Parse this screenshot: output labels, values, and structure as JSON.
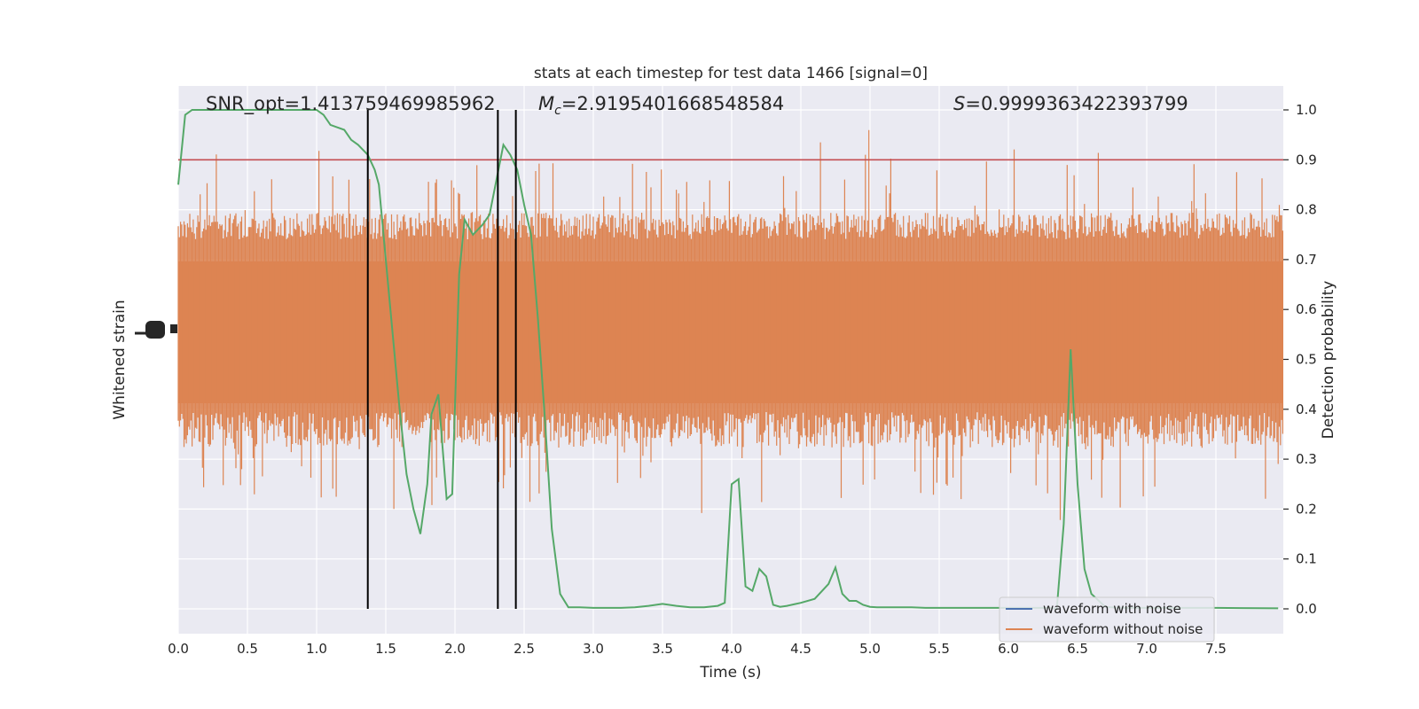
{
  "chart_data": {
    "type": "line",
    "title": "stats at each timestep for test data 1466 [signal=0]",
    "xlabel": "Time (s)",
    "ylabel_left": "Whitened strain",
    "ylabel_right": "Detection probability",
    "xlim": [
      0,
      8.0
    ],
    "ylim_right": [
      -0.05,
      1.05
    ],
    "x_ticks": [
      0.0,
      0.5,
      1.0,
      1.5,
      2.0,
      2.5,
      3.0,
      3.5,
      4.0,
      4.5,
      5.0,
      5.5,
      6.0,
      6.5,
      7.0,
      7.5
    ],
    "x_tick_labels": [
      "0.0",
      "0.5",
      "1.0",
      "1.5",
      "2.0",
      "2.5",
      "3.0",
      "3.5",
      "4.0",
      "4.5",
      "5.0",
      "5.5",
      "6.0",
      "6.5",
      "7.0",
      "7.5"
    ],
    "y_ticks_right": [
      0.0,
      0.1,
      0.2,
      0.3,
      0.4,
      0.5,
      0.6,
      0.7,
      0.8,
      0.9,
      1.0
    ],
    "y_tick_labels_right": [
      "0.0",
      "0.1",
      "0.2",
      "0.3",
      "0.4",
      "0.5",
      "0.6",
      "0.7",
      "0.8",
      "0.9",
      "1.0"
    ],
    "threshold": 0.9,
    "vertical_lines": [
      1.37,
      2.31,
      2.44
    ],
    "annotations": {
      "snr": "SNR_opt=1.413759469985962",
      "mc_symbol": "M",
      "mc_sub": "c",
      "mc_value": "=2.9195401668548584",
      "s_symbol": "S",
      "s_value": "=0.9999363422393799"
    },
    "legend": [
      {
        "label": "waveform with noise",
        "color": "#4c72b0"
      },
      {
        "label": "waveform without noise",
        "color": "#dd8452"
      }
    ],
    "series": [
      {
        "name": "detection probability",
        "color": "#55a868",
        "x": [
          0.0,
          0.05,
          0.1,
          0.2,
          0.3,
          0.4,
          0.5,
          0.6,
          0.7,
          0.8,
          0.9,
          1.0,
          1.05,
          1.1,
          1.2,
          1.25,
          1.3,
          1.37,
          1.42,
          1.45,
          1.5,
          1.55,
          1.6,
          1.65,
          1.7,
          1.75,
          1.8,
          1.83,
          1.88,
          1.94,
          1.98,
          2.03,
          2.07,
          2.13,
          2.2,
          2.25,
          2.3,
          2.35,
          2.4,
          2.45,
          2.5,
          2.55,
          2.6,
          2.65,
          2.7,
          2.76,
          2.82,
          2.9,
          3.0,
          3.1,
          3.2,
          3.3,
          3.4,
          3.5,
          3.6,
          3.7,
          3.8,
          3.9,
          3.95,
          4.0,
          4.05,
          4.1,
          4.15,
          4.2,
          4.25,
          4.3,
          4.35,
          4.4,
          4.45,
          4.5,
          4.6,
          4.7,
          4.75,
          4.8,
          4.85,
          4.9,
          4.95,
          5.0,
          5.05,
          5.1,
          5.2,
          5.3,
          5.4,
          5.5,
          5.7,
          6.0,
          6.2,
          6.3,
          6.35,
          6.4,
          6.45,
          6.5,
          6.55,
          6.6,
          6.7,
          6.8,
          7.0,
          7.5,
          7.95
        ],
        "values": [
          0.85,
          0.99,
          1.0,
          1.0,
          1.0,
          1.0,
          1.0,
          1.0,
          1.0,
          1.0,
          1.0,
          1.0,
          0.99,
          0.97,
          0.96,
          0.94,
          0.93,
          0.91,
          0.88,
          0.85,
          0.7,
          0.55,
          0.4,
          0.27,
          0.2,
          0.15,
          0.25,
          0.39,
          0.43,
          0.22,
          0.23,
          0.67,
          0.78,
          0.75,
          0.77,
          0.79,
          0.86,
          0.93,
          0.91,
          0.88,
          0.81,
          0.75,
          0.58,
          0.38,
          0.16,
          0.03,
          0.003,
          0.003,
          0.002,
          0.002,
          0.002,
          0.003,
          0.006,
          0.01,
          0.006,
          0.003,
          0.003,
          0.006,
          0.012,
          0.25,
          0.26,
          0.045,
          0.036,
          0.08,
          0.065,
          0.008,
          0.004,
          0.006,
          0.009,
          0.012,
          0.02,
          0.05,
          0.083,
          0.03,
          0.016,
          0.016,
          0.008,
          0.004,
          0.003,
          0.003,
          0.003,
          0.003,
          0.002,
          0.002,
          0.002,
          0.002,
          0.002,
          0.002,
          0.0,
          0.17,
          0.52,
          0.25,
          0.08,
          0.03,
          0.004,
          0.002,
          0.002,
          0.002,
          0.001
        ]
      }
    ]
  }
}
